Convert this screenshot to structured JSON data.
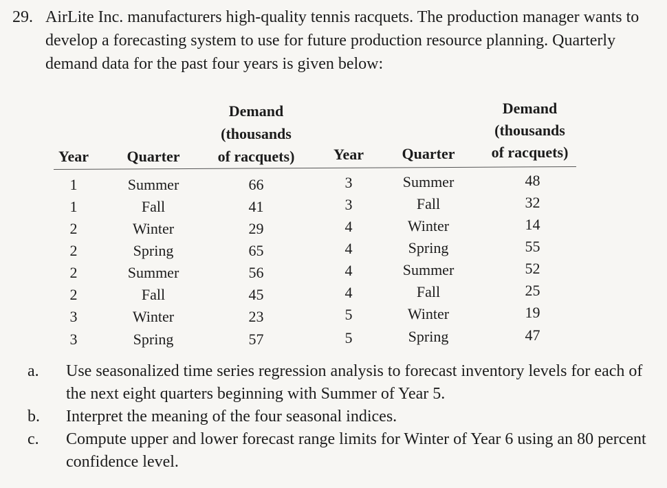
{
  "problem": {
    "number": "29.",
    "text": "AirLite Inc. manufacturers high-quality tennis racquets. The production manager wants to develop a forecasting system to use for future production resource planning. Quarterly demand data for the past four years is given below:"
  },
  "table": {
    "headers": {
      "year": "Year",
      "quarter": "Quarter",
      "demand_line1": "Demand",
      "demand_line2": "(thousands",
      "demand_line3": "of racquets)"
    },
    "left_rows": [
      {
        "year": "1",
        "quarter": "Summer",
        "demand": "66"
      },
      {
        "year": "1",
        "quarter": "Fall",
        "demand": "41"
      },
      {
        "year": "2",
        "quarter": "Winter",
        "demand": "29"
      },
      {
        "year": "2",
        "quarter": "Spring",
        "demand": "65"
      },
      {
        "year": "2",
        "quarter": "Summer",
        "demand": "56"
      },
      {
        "year": "2",
        "quarter": "Fall",
        "demand": "45"
      },
      {
        "year": "3",
        "quarter": "Winter",
        "demand": "23"
      },
      {
        "year": "3",
        "quarter": "Spring",
        "demand": "57"
      }
    ],
    "right_rows": [
      {
        "year": "3",
        "quarter": "Summer",
        "demand": "48"
      },
      {
        "year": "3",
        "quarter": "Fall",
        "demand": "32"
      },
      {
        "year": "4",
        "quarter": "Winter",
        "demand": "14"
      },
      {
        "year": "4",
        "quarter": "Spring",
        "demand": "55"
      },
      {
        "year": "4",
        "quarter": "Summer",
        "demand": "52"
      },
      {
        "year": "4",
        "quarter": "Fall",
        "demand": "25"
      },
      {
        "year": "5",
        "quarter": "Winter",
        "demand": "19"
      },
      {
        "year": "5",
        "quarter": "Spring",
        "demand": "47"
      }
    ]
  },
  "items": [
    {
      "label": "a.",
      "text": "Use seasonalized time series regression analysis to forecast inventory levels for each of the next eight quarters beginning with Summer of Year 5."
    },
    {
      "label": "b.",
      "text": "Interpret the meaning of the four seasonal indices."
    },
    {
      "label": "c.",
      "text": "Compute upper and lower forecast range limits for Winter of Year 6 using an 80 percent confidence level."
    }
  ]
}
